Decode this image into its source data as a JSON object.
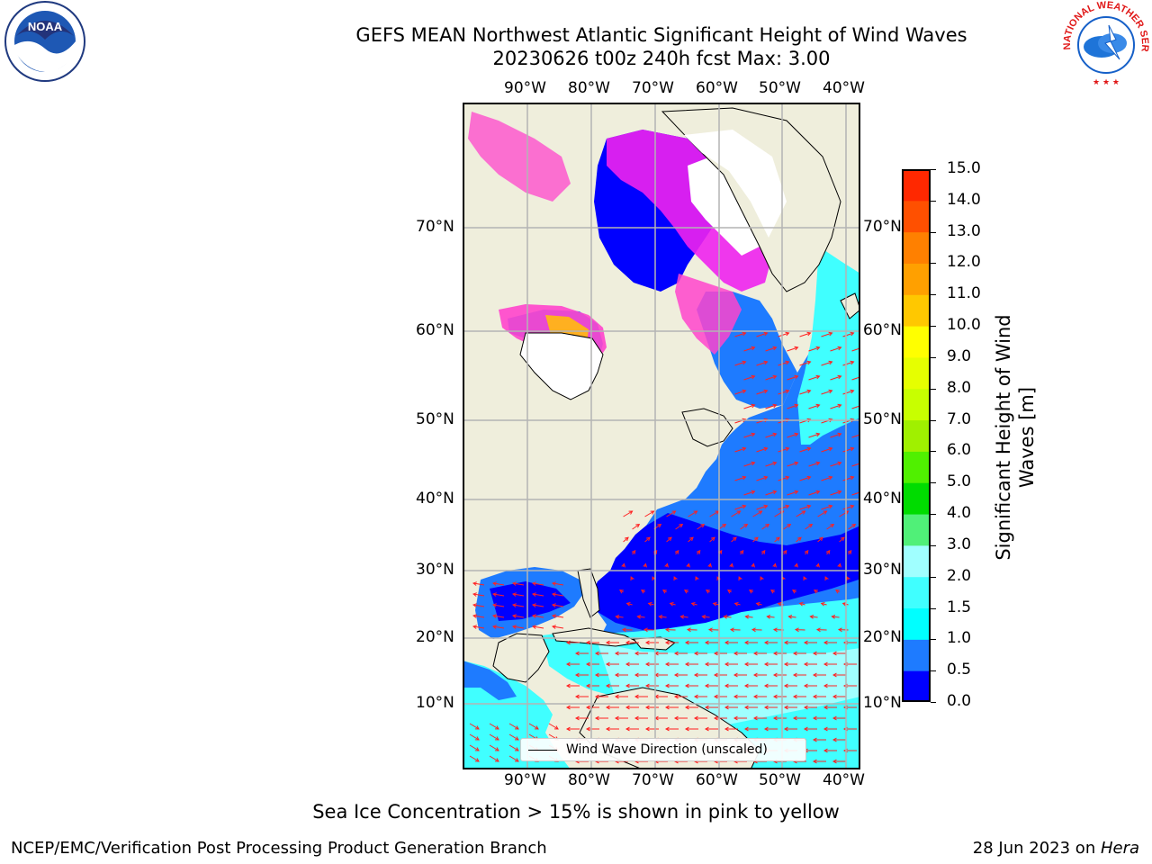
{
  "title": {
    "line1": "GEFS MEAN Northwest Atlantic Significant Height of Wind Waves",
    "line2": "20230626 t00z 240h fcst   Max: 3.00"
  },
  "logos": {
    "left": {
      "icon": "noaa-logo",
      "text": "NOAA"
    },
    "right": {
      "icon": "nws-logo",
      "text": "NATIONAL WEATHER SERVICE"
    }
  },
  "map": {
    "lon_labels": [
      "90°W",
      "80°W",
      "70°W",
      "60°W",
      "50°W",
      "40°W"
    ],
    "lat_labels": [
      "70°N",
      "60°N",
      "50°N",
      "40°N",
      "30°N",
      "20°N",
      "10°N"
    ],
    "legend_label": "Wind Wave Direction (unscaled)",
    "colors": {
      "land": "#efeedc",
      "ice_pink": "#ff44cc",
      "ice_magenta": "#ee22ee",
      "ice_orange": "#ffb020",
      "grid": "#b4b4b4",
      "arrow": "#ff2020",
      "lake": "#ffffff"
    }
  },
  "colorbar": {
    "label": "Significant Height of Wind Waves [m]",
    "label_line1": "Significant Height of Wind",
    "label_line2": "Waves [m]",
    "ticks": [
      "0.0",
      "0.5",
      "1.0",
      "1.5",
      "2.0",
      "3.0",
      "4.0",
      "5.0",
      "6.0",
      "7.0",
      "8.0",
      "9.0",
      "10.0",
      "11.0",
      "12.0",
      "13.0",
      "14.0",
      "15.0"
    ],
    "colors": [
      "#0000ff",
      "#1e7bff",
      "#00ffff",
      "#40ffff",
      "#a0ffff",
      "#50f078",
      "#00dc00",
      "#50f000",
      "#a0f000",
      "#c8ff00",
      "#e6ff00",
      "#ffff00",
      "#ffc800",
      "#ffa000",
      "#ff8000",
      "#ff5000",
      "#ff2800",
      "#ff0000"
    ]
  },
  "note": "Sea Ice Concentration > 15% is shown in pink to yellow",
  "footer": {
    "left": "NCEP/EMC/Verification Post Processing Product Generation Branch",
    "right_prefix": "28 Jun 2023 on ",
    "right_host": "Hera"
  }
}
